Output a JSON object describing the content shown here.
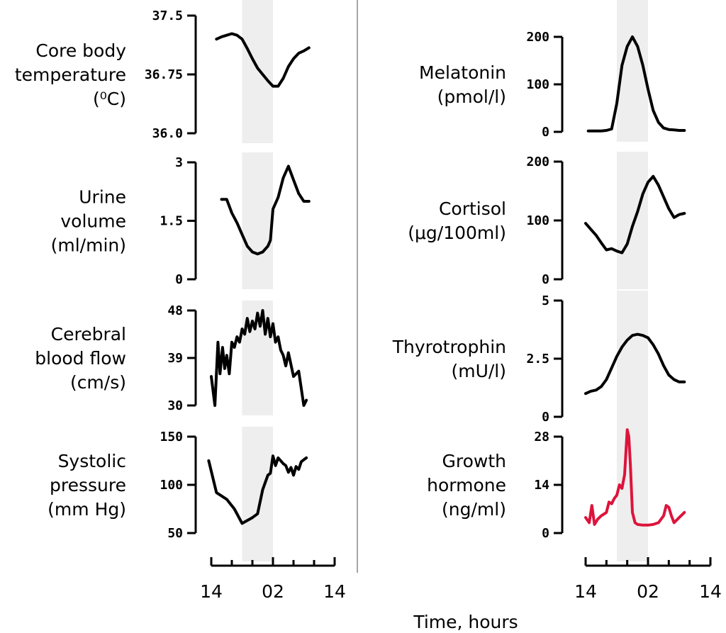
{
  "x_axis": {
    "label": "Time, hours",
    "tick_labels": [
      "14",
      "02",
      "14"
    ]
  },
  "chart_data": [
    {
      "type": "line",
      "column": "left",
      "label_lines": [
        "Core body",
        "temperature",
        "(⁰C)"
      ],
      "ylim": [
        36.0,
        37.5
      ],
      "yticks": [
        "37.5",
        "36.75",
        "36.0"
      ],
      "ytick_values": [
        37.5,
        36.75,
        36.0
      ],
      "shaded_x": [
        20,
        26
      ],
      "line_color": "#000000",
      "series": [
        {
          "x": [
            15,
            16,
            17,
            18,
            19,
            20,
            21,
            22,
            23,
            24,
            25,
            26,
            27,
            28,
            29,
            30,
            31,
            32,
            33
          ],
          "y": [
            37.2,
            37.23,
            37.25,
            37.27,
            37.25,
            37.2,
            37.08,
            36.95,
            36.83,
            36.75,
            36.67,
            36.6,
            36.6,
            36.7,
            36.85,
            36.95,
            37.02,
            37.05,
            37.09
          ]
        }
      ]
    },
    {
      "type": "line",
      "column": "left",
      "label_lines": [
        "Urine",
        "volume",
        "(ml/min)"
      ],
      "ylim": [
        0,
        3
      ],
      "yticks": [
        "3",
        "1.5",
        "0"
      ],
      "ytick_values": [
        3,
        1.5,
        0
      ],
      "shaded_x": [
        20,
        26
      ],
      "line_color": "#000000",
      "series": [
        {
          "x": [
            16,
            17,
            18,
            19,
            20,
            21,
            22,
            23,
            24,
            25,
            25.5,
            26,
            27,
            28,
            29,
            30,
            31,
            32,
            33
          ],
          "y": [
            2.05,
            2.05,
            1.7,
            1.45,
            1.15,
            0.85,
            0.7,
            0.65,
            0.7,
            0.85,
            1.0,
            1.8,
            2.1,
            2.6,
            2.9,
            2.55,
            2.2,
            2.0,
            2.0
          ]
        }
      ]
    },
    {
      "type": "line",
      "column": "left",
      "label_lines": [
        "Cerebral",
        "blood flow",
        "(cm/s)"
      ],
      "ylim": [
        30,
        48
      ],
      "yticks": [
        "48",
        "39",
        "30"
      ],
      "ytick_values": [
        48,
        39,
        30
      ],
      "shaded_x": [
        20,
        26
      ],
      "line_color": "#000000",
      "series": [
        {
          "x": [
            14,
            14.7,
            15.3,
            15.7,
            16.2,
            16.6,
            17.0,
            17.5,
            18.0,
            18.5,
            19.0,
            19.5,
            20.0,
            20.5,
            21.0,
            21.5,
            22.0,
            22.5,
            23.0,
            23.5,
            24.0,
            24.5,
            25.0,
            25.5,
            26.0,
            26.5,
            27.0,
            27.5,
            28.0,
            28.5,
            29.0,
            30.0,
            31.0,
            32.0,
            32.5
          ],
          "y": [
            35.5,
            30.0,
            42.0,
            36.0,
            41.0,
            37.0,
            39.5,
            36.0,
            42.0,
            41.0,
            43.0,
            42.0,
            44.5,
            43.5,
            46.5,
            44.0,
            46.0,
            44.5,
            47.5,
            45.0,
            48.0,
            43.5,
            46.5,
            43.0,
            45.5,
            42.0,
            43.0,
            40.5,
            39.5,
            37.5,
            40.0,
            35.5,
            36.5,
            30.0,
            31.0
          ]
        }
      ]
    },
    {
      "type": "line",
      "column": "left",
      "label_lines": [
        "Systolic",
        "pressure",
        "(mm Hg)"
      ],
      "ylim": [
        50,
        150
      ],
      "yticks": [
        "150",
        "100",
        "50"
      ],
      "ytick_values": [
        150,
        100,
        50
      ],
      "shaded_x": [
        20,
        26
      ],
      "line_color": "#000000",
      "series": [
        {
          "x": [
            13.5,
            15,
            17,
            18.5,
            20,
            21,
            22,
            23,
            24,
            25,
            25.5,
            26,
            26.5,
            27,
            28,
            28.5,
            29,
            29.5,
            30,
            30.5,
            31,
            31.5,
            32,
            32.5
          ],
          "y": [
            125,
            92,
            85,
            75,
            60,
            63,
            66,
            70,
            95,
            110,
            112,
            130,
            120,
            128,
            122,
            120,
            113,
            118,
            110,
            119,
            116,
            124,
            126,
            128
          ]
        }
      ]
    },
    {
      "type": "line",
      "column": "right",
      "label_lines": [
        "Melatonin",
        "(pmol/l)"
      ],
      "ylim": [
        0,
        200
      ],
      "yticks": [
        "200",
        "100",
        "0"
      ],
      "ytick_values": [
        200,
        100,
        0
      ],
      "shaded_x": [
        20,
        26
      ],
      "line_color": "#000000",
      "series": [
        {
          "x": [
            14.5,
            16,
            17,
            18,
            19,
            20,
            21,
            22,
            23,
            24,
            25,
            26,
            27,
            28,
            29,
            30,
            31,
            32,
            33
          ],
          "y": [
            2,
            2,
            2,
            3,
            6,
            60,
            140,
            180,
            200,
            180,
            140,
            90,
            45,
            20,
            8,
            5,
            4,
            3,
            3
          ]
        }
      ]
    },
    {
      "type": "line",
      "column": "right",
      "label_lines": [
        "Cortisol",
        "(μg/100ml)"
      ],
      "ylim": [
        0,
        200
      ],
      "yticks": [
        "200",
        "100",
        "0"
      ],
      "ytick_values": [
        200,
        100,
        0
      ],
      "shaded_x": [
        20,
        26
      ],
      "line_color": "#000000",
      "series": [
        {
          "x": [
            14,
            15,
            16,
            17,
            18,
            19,
            20,
            21,
            22,
            23,
            24,
            25,
            26,
            27,
            28,
            29,
            30,
            31,
            32,
            33
          ],
          "y": [
            95,
            85,
            75,
            62,
            50,
            52,
            48,
            45,
            60,
            90,
            115,
            145,
            165,
            175,
            160,
            140,
            120,
            105,
            110,
            112
          ]
        }
      ]
    },
    {
      "type": "line",
      "column": "right",
      "label_lines": [
        "Thyrotrophin",
        "(mU/l)"
      ],
      "ylim": [
        0,
        5
      ],
      "yticks": [
        "5",
        "2.5",
        "0"
      ],
      "ytick_values": [
        5,
        2.5,
        0
      ],
      "shaded_x": [
        20,
        26
      ],
      "line_color": "#000000",
      "series": [
        {
          "x": [
            14,
            15,
            16,
            17,
            18,
            19,
            20,
            21,
            22,
            23,
            24,
            25,
            26,
            27,
            28,
            29,
            30,
            31,
            32,
            33
          ],
          "y": [
            1.0,
            1.1,
            1.15,
            1.3,
            1.6,
            2.1,
            2.6,
            3.0,
            3.3,
            3.5,
            3.55,
            3.5,
            3.4,
            3.1,
            2.7,
            2.2,
            1.8,
            1.6,
            1.5,
            1.5
          ]
        }
      ]
    },
    {
      "type": "line",
      "column": "right",
      "label_lines": [
        "Growth",
        "hormone",
        "(ng/ml)"
      ],
      "ylim": [
        0,
        28
      ],
      "yticks": [
        "28",
        "14",
        "0"
      ],
      "ytick_values": [
        28,
        14,
        0
      ],
      "shaded_x": [
        20,
        26
      ],
      "line_color": "#dc143c",
      "series": [
        {
          "x": [
            14,
            14.7,
            15.2,
            15.7,
            16.3,
            17,
            18,
            18.5,
            19,
            19.5,
            20,
            20.5,
            21,
            21.5,
            22,
            22.3,
            22.6,
            23,
            23.5,
            24,
            25,
            26,
            27,
            28,
            29,
            29.5,
            30,
            30.5,
            31,
            32,
            33
          ],
          "y": [
            4.5,
            3,
            8,
            2.5,
            4,
            5,
            6,
            9,
            8.5,
            10,
            11,
            14,
            13,
            17,
            30,
            28,
            20,
            6,
            3,
            2.5,
            2.3,
            2.3,
            2.5,
            3,
            5,
            8,
            7.5,
            5,
            3,
            4.5,
            6
          ]
        }
      ]
    }
  ]
}
